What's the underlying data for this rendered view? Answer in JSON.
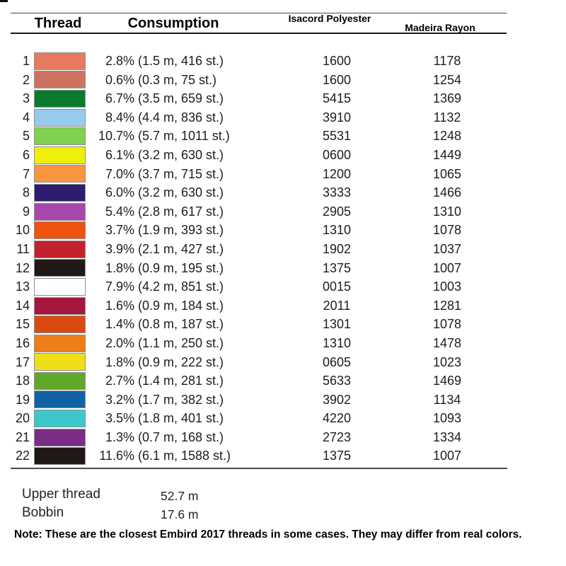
{
  "table": {
    "headers": {
      "thread": "Thread",
      "consumption": "Consumption",
      "isacord": "Isacord Polyester",
      "madeira": "Madeira Rayon"
    },
    "rows": [
      {
        "num": "1",
        "color": "#E87A5F",
        "pct": "2.8%",
        "detail": "(1.5 m, 416 st.)",
        "isacord": "1600",
        "madeira": "1178"
      },
      {
        "num": "2",
        "color": "#CE7260",
        "pct": "0.6%",
        "detail": "(0.3 m, 75 st.)",
        "isacord": "1600",
        "madeira": "1254"
      },
      {
        "num": "3",
        "color": "#087C2C",
        "pct": "6.7%",
        "detail": "(3.5 m, 659 st.)",
        "isacord": "5415",
        "madeira": "1369"
      },
      {
        "num": "4",
        "color": "#97CBEE",
        "pct": "8.4%",
        "detail": "(4.4 m, 836 st.)",
        "isacord": "3910",
        "madeira": "1132"
      },
      {
        "num": "5",
        "color": "#80D14F",
        "pct": "10.7%",
        "detail": "(5.7 m, 1011 st.)",
        "isacord": "5531",
        "madeira": "1248"
      },
      {
        "num": "6",
        "color": "#EFEF0C",
        "pct": "6.1%",
        "detail": "(3.2 m, 630 st.)",
        "isacord": "0600",
        "madeira": "1449"
      },
      {
        "num": "7",
        "color": "#F9943F",
        "pct": "7.0%",
        "detail": "(3.7 m, 715 st.)",
        "isacord": "1200",
        "madeira": "1065"
      },
      {
        "num": "8",
        "color": "#2E1D6E",
        "pct": "6.0%",
        "detail": "(3.2 m, 630 st.)",
        "isacord": "3333",
        "madeira": "1466"
      },
      {
        "num": "9",
        "color": "#A847AE",
        "pct": "5.4%",
        "detail": "(2.8 m, 617 st.)",
        "isacord": "2905",
        "madeira": "1310"
      },
      {
        "num": "10",
        "color": "#EE5310",
        "pct": "3.7%",
        "detail": "(1.9 m, 393 st.)",
        "isacord": "1310",
        "madeira": "1078"
      },
      {
        "num": "11",
        "color": "#C2232B",
        "pct": "3.9%",
        "detail": "(2.1 m, 427 st.)",
        "isacord": "1902",
        "madeira": "1037"
      },
      {
        "num": "12",
        "color": "#201917",
        "pct": "1.8%",
        "detail": "(0.9 m, 195 st.)",
        "isacord": "1375",
        "madeira": "1007"
      },
      {
        "num": "13",
        "color": "#FFFFFF",
        "pct": "7.9%",
        "detail": "(4.2 m, 851 st.)",
        "isacord": "0015",
        "madeira": "1003"
      },
      {
        "num": "14",
        "color": "#A5173F",
        "pct": "1.6%",
        "detail": "(0.9 m, 184 st.)",
        "isacord": "2011",
        "madeira": "1281"
      },
      {
        "num": "15",
        "color": "#DA4911",
        "pct": "1.4%",
        "detail": "(0.8 m, 187 st.)",
        "isacord": "1301",
        "madeira": "1078"
      },
      {
        "num": "16",
        "color": "#EE7E1A",
        "pct": "2.0%",
        "detail": "(1.1 m, 250 st.)",
        "isacord": "1310",
        "madeira": "1478"
      },
      {
        "num": "17",
        "color": "#EEDE17",
        "pct": "1.8%",
        "detail": "(0.9 m, 222 st.)",
        "isacord": "0605",
        "madeira": "1023"
      },
      {
        "num": "18",
        "color": "#60A82A",
        "pct": "2.7%",
        "detail": "(1.4 m, 281 st.)",
        "isacord": "5633",
        "madeira": "1469"
      },
      {
        "num": "19",
        "color": "#1162A4",
        "pct": "3.2%",
        "detail": "(1.7 m, 382 st.)",
        "isacord": "3902",
        "madeira": "1134"
      },
      {
        "num": "20",
        "color": "#3EC7CB",
        "pct": "3.5%",
        "detail": "(1.8 m, 401 st.)",
        "isacord": "4220",
        "madeira": "1093"
      },
      {
        "num": "21",
        "color": "#7B2C85",
        "pct": "1.3%",
        "detail": "(0.7 m, 168 st.)",
        "isacord": "2723",
        "madeira": "1334"
      },
      {
        "num": "22",
        "color": "#201917",
        "pct": "11.6%",
        "detail": "(6.1 m, 1588 st.)",
        "isacord": "1375",
        "madeira": "1007"
      }
    ]
  },
  "summary": {
    "upper": {
      "label": "Upper thread",
      "value": "52.7 m"
    },
    "bobbin": {
      "label": "Bobbin",
      "value": "17.6 m"
    }
  },
  "note": "Note: These are the closest Embird 2017 threads in some cases. They may differ from real colors."
}
